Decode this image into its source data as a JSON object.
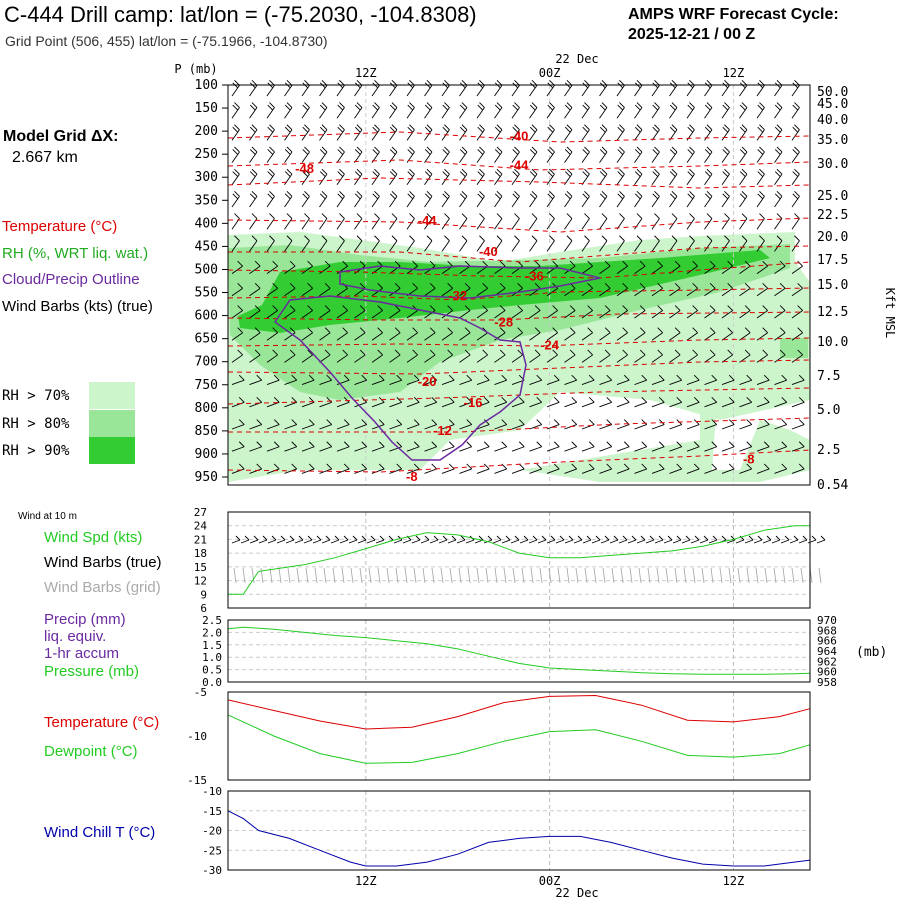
{
  "header": {
    "title": "C-444 Drill camp:  lat/lon = (-75.2030, -104.8308)",
    "subtitle": "Grid Point (506, 455) lat/lon = (-75.1966, -104.8730)",
    "cycle_title": "AMPS WRF Forecast Cycle:",
    "cycle_value": "2025-12-21 / 00  Z",
    "grid_label": "Model Grid ΔX:",
    "grid_value": "2.667 km"
  },
  "time_axis": {
    "date_label": "22 Dec",
    "ticks": [
      {
        "label": "12Z",
        "hour": 12
      },
      {
        "label": "00Z",
        "hour": 24
      },
      {
        "label": "12Z",
        "hour": 36
      }
    ],
    "hour_range": [
      3,
      41
    ]
  },
  "legend": {
    "temperature": "Temperature (°C)",
    "rh": "RH (%, WRT liq. wat.)",
    "cloud": "Cloud/Precip Outline",
    "wind": "Wind Barbs (kts) (true)",
    "rh70": "RH > 70%",
    "rh80": "RH > 80%",
    "rh90": "RH > 90%"
  },
  "colors": {
    "temperature": "#dd0000",
    "rh_text": "#22aa22",
    "cloud": "#6a2aa0",
    "rh70": "#ccf5cc",
    "rh80": "#99e699",
    "rh90": "#33cc33",
    "wind_speed": "#22cc22",
    "precip_text": "#6a2aa0",
    "pressure": "#22cc22",
    "dewpoint": "#22cc22",
    "windchill": "#0000aa",
    "grid_barbs": "#aaaaaa"
  },
  "chart_data": [
    {
      "type": "heatmap",
      "name": "time-height cross section",
      "ylabel": "P (mb)",
      "ylabel_right": "Kft MSL",
      "pressure_levels": [
        "100",
        "150",
        "200",
        "250",
        "300",
        "350",
        "400",
        "450",
        "500",
        "550",
        "600",
        "650",
        "700",
        "750",
        "800",
        "850",
        "900",
        "950"
      ],
      "kft_levels": [
        "50.0",
        "45.0",
        "40.0",
        "35.0",
        "30.0",
        "25.0",
        "22.5",
        "20.0",
        "17.5",
        "15.0",
        "12.5",
        "10.0",
        "7.5",
        "5.0",
        "2.5",
        "0.54"
      ],
      "temperature_labels": [
        {
          "label": "-40",
          "hour": 22,
          "p": 210
        },
        {
          "label": "-44",
          "hour": 22,
          "p": 272
        },
        {
          "label": "-48",
          "hour": 8,
          "p": 280
        },
        {
          "label": "-44",
          "hour": 16,
          "p": 393
        },
        {
          "label": "-40",
          "hour": 20,
          "p": 460
        },
        {
          "label": "-36",
          "hour": 23,
          "p": 513
        },
        {
          "label": "-32",
          "hour": 18,
          "p": 555
        },
        {
          "label": "-28",
          "hour": 21,
          "p": 613
        },
        {
          "label": "-24",
          "hour": 24,
          "p": 663
        },
        {
          "label": "-20",
          "hour": 16,
          "p": 742
        },
        {
          "label": "-16",
          "hour": 19,
          "p": 787
        },
        {
          "label": "-12",
          "hour": 17,
          "p": 848
        },
        {
          "label": "-8",
          "hour": 15,
          "p": 948
        },
        {
          "label": "-8",
          "hour": 37,
          "p": 910
        }
      ],
      "rh_thresholds": [
        "70",
        "80",
        "90"
      ]
    },
    {
      "type": "line",
      "name": "Wind at 10 m",
      "title": "Wind at 10 m",
      "label_speed": "Wind Spd (kts)",
      "label_barbs_true": "Wind Barbs (true)",
      "label_barbs_grid": "Wind Barbs (grid)",
      "ylim": [
        6,
        27
      ],
      "yticks": [
        "6",
        "9",
        "12",
        "15",
        "18",
        "21",
        "24",
        "27"
      ],
      "x": [
        3,
        4,
        5,
        6,
        8,
        10,
        12,
        14,
        16,
        18,
        20,
        22,
        24,
        26,
        28,
        30,
        32,
        34,
        36,
        38,
        40,
        41
      ],
      "values": [
        9,
        9,
        14,
        14.5,
        15.5,
        17,
        19,
        21,
        22.5,
        22,
        20.5,
        18,
        17,
        17,
        17.5,
        18,
        18.5,
        19.5,
        21,
        23,
        24,
        24
      ]
    },
    {
      "type": "line",
      "name": "Precip and pressure",
      "label_precip": "Precip (mm)",
      "label_precip2": "liq. equiv.",
      "label_precip3": "1-hr accum",
      "label_pressure": "Pressure (mb)",
      "unit_right": "(mb)",
      "precip_ylim": [
        0,
        2.5
      ],
      "precip_yticks": [
        "0.0",
        "0.5",
        "1.0",
        "1.5",
        "2.0",
        "2.5"
      ],
      "pressure_ylim": [
        958,
        970
      ],
      "pressure_yticks": [
        "958",
        "960",
        "962",
        "964",
        "966",
        "968",
        "970"
      ],
      "x": [
        3,
        4,
        6,
        8,
        10,
        12,
        14,
        16,
        18,
        20,
        22,
        24,
        26,
        28,
        30,
        32,
        34,
        36,
        38,
        40,
        41
      ],
      "pressure": [
        968.3,
        968.6,
        968.2,
        967.6,
        967.0,
        966.6,
        966.0,
        965.4,
        964.4,
        963.0,
        961.6,
        960.7,
        960.4,
        960.1,
        959.8,
        959.6,
        959.5,
        959.5,
        959.5,
        959.6,
        959.7
      ],
      "precip": [
        0,
        0,
        0,
        0,
        0,
        0,
        0,
        0,
        0,
        0,
        0,
        0,
        0,
        0,
        0,
        0,
        0,
        0,
        0,
        0,
        0
      ]
    },
    {
      "type": "line",
      "name": "Temperature and dewpoint",
      "label_temp": "Temperature (°C)",
      "label_dew": "Dewpoint (°C)",
      "ylim": [
        -15,
        -5
      ],
      "yticks": [
        "-15",
        "-10",
        "-5"
      ],
      "x": [
        3,
        6,
        9,
        12,
        15,
        18,
        21,
        24,
        27,
        30,
        33,
        36,
        39,
        41
      ],
      "temperature": [
        -5.9,
        -7.1,
        -8.3,
        -9.2,
        -9.0,
        -7.8,
        -6.2,
        -5.5,
        -5.4,
        -6.5,
        -8.2,
        -8.4,
        -7.8,
        -6.9
      ],
      "dewpoint": [
        -7.6,
        -10.0,
        -12.0,
        -13.1,
        -13.0,
        -12.0,
        -10.6,
        -9.5,
        -9.3,
        -10.6,
        -12.2,
        -12.4,
        -12.0,
        -11.0
      ]
    },
    {
      "type": "line",
      "name": "Wind chill",
      "label": "Wind Chill T (°C)",
      "ylim": [
        -30,
        -10
      ],
      "yticks": [
        "-30",
        "-25",
        "-20",
        "-15",
        "-10"
      ],
      "x": [
        3,
        4,
        5,
        7,
        9,
        11,
        12,
        14,
        16,
        18,
        20,
        22,
        24,
        26,
        28,
        30,
        32,
        34,
        36,
        38,
        41
      ],
      "values": [
        -15,
        -17,
        -20,
        -22,
        -25,
        -28,
        -29,
        -29,
        -28,
        -26,
        -23,
        -22,
        -21.5,
        -21.5,
        -23,
        -25,
        -27,
        -28.5,
        -29,
        -29,
        -27.5
      ]
    }
  ]
}
